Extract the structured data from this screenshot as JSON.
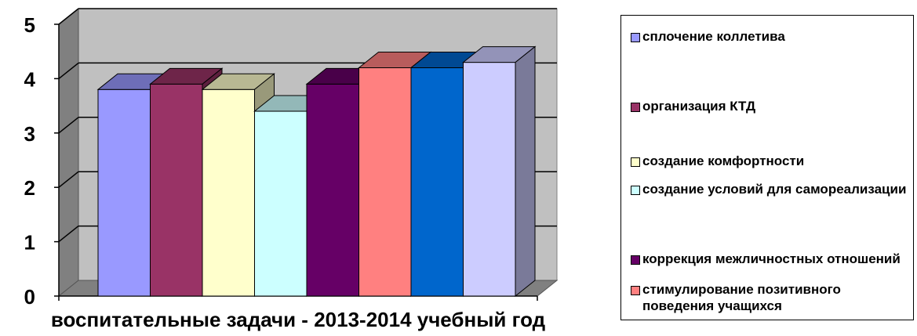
{
  "chart_data": {
    "type": "bar",
    "xlabel": "воспитательные задачи - 2013-2014 учебный год",
    "ylim": [
      0,
      5
    ],
    "yticks": [
      "0",
      "1",
      "2",
      "3",
      "4",
      "5"
    ],
    "grid": true,
    "legend_position": "right",
    "three_d": true,
    "series": [
      {
        "name": "сплочение коллетива",
        "value": 3.8,
        "color": "#9999FF"
      },
      {
        "name": "организация КТД",
        "value": 3.9,
        "color": "#993366"
      },
      {
        "name": "создание комфортности",
        "value": 3.8,
        "color": "#FFFFCC"
      },
      {
        "name": "создание условий для самореализации",
        "value": 3.4,
        "color": "#CCFFFF"
      },
      {
        "name": "коррекция межличностных отношений",
        "value": 3.9,
        "color": "#660066"
      },
      {
        "name": "стимулирование позитивного поведения учащихся",
        "value": 4.2,
        "color": "#FF8080"
      },
      {
        "name": "",
        "value": 4.2,
        "color": "#0066CC"
      },
      {
        "name": "",
        "value": 4.3,
        "color": "#CCCCFF"
      }
    ]
  }
}
